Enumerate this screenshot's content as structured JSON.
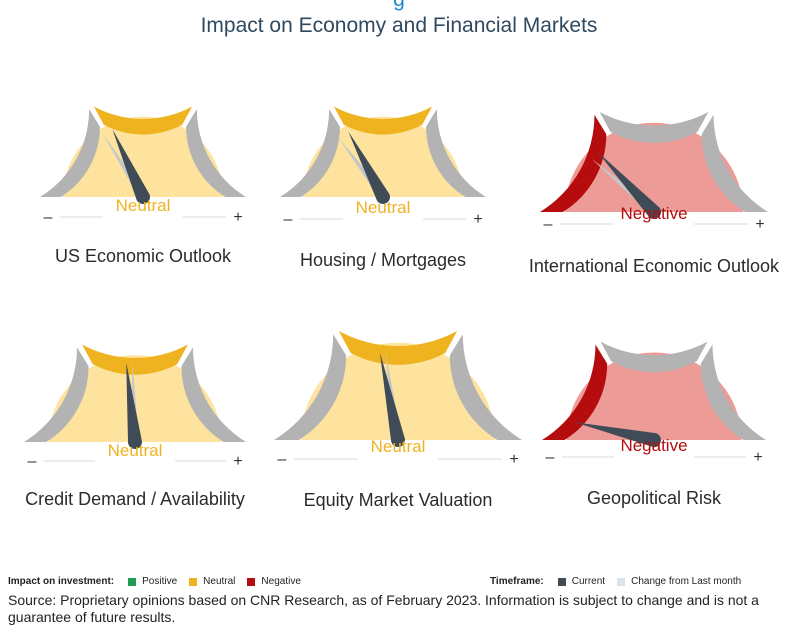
{
  "title_partial": "g",
  "title": "Impact on Economy and Financial Markets",
  "colors": {
    "positive": "#1f9d55",
    "neutral": "#efb320",
    "negative": "#b50d0d",
    "neutral_fill": "#fde39e",
    "negative_fill": "#ec9b97",
    "segment_grey": "#b3b3b3",
    "needle_current": "#3f4b57",
    "needle_change": "#c3c7cc"
  },
  "minus_sign": "–",
  "plus_sign": "+",
  "chart_data": [
    {
      "type": "gauge",
      "label": "US Economic Outlook",
      "status": "Neutral",
      "current_position": -0.27,
      "last_month_position": -0.36
    },
    {
      "type": "gauge",
      "label": "Housing / Mortgages",
      "status": "Neutral",
      "current_position": -0.31,
      "last_month_position": -0.41
    },
    {
      "type": "gauge",
      "label": "International Economic Outlook",
      "status": "Negative",
      "current_position": -0.48,
      "last_month_position": -0.55
    },
    {
      "type": "gauge",
      "label": "Credit Demand / Availability",
      "status": "Neutral",
      "current_position": -0.07,
      "last_month_position": -0.02
    },
    {
      "type": "gauge",
      "label": "Equity Market Valuation",
      "status": "Neutral",
      "current_position": -0.13,
      "last_month_position": -0.09
    },
    {
      "type": "gauge",
      "label": "Geopolitical Risk",
      "status": "Negative",
      "current_position": -0.86,
      "last_month_position": -0.86
    }
  ],
  "legend": {
    "impact_label": "Impact on investment:",
    "impact_items": [
      {
        "label": "Positive",
        "color": "#1f9d55"
      },
      {
        "label": "Neutral",
        "color": "#efb320"
      },
      {
        "label": "Negative",
        "color": "#b50d0d"
      }
    ],
    "timeframe_label": "Timeframe:",
    "timeframe_items": [
      {
        "label": "Current",
        "color": "#3f4b57"
      },
      {
        "label": "Change from Last month",
        "color": "#dde3ea"
      }
    ]
  },
  "source": "Source: Proprietary opinions based on CNR Research, as of February 2023. Information is subject to change and is not a guarantee of future results."
}
